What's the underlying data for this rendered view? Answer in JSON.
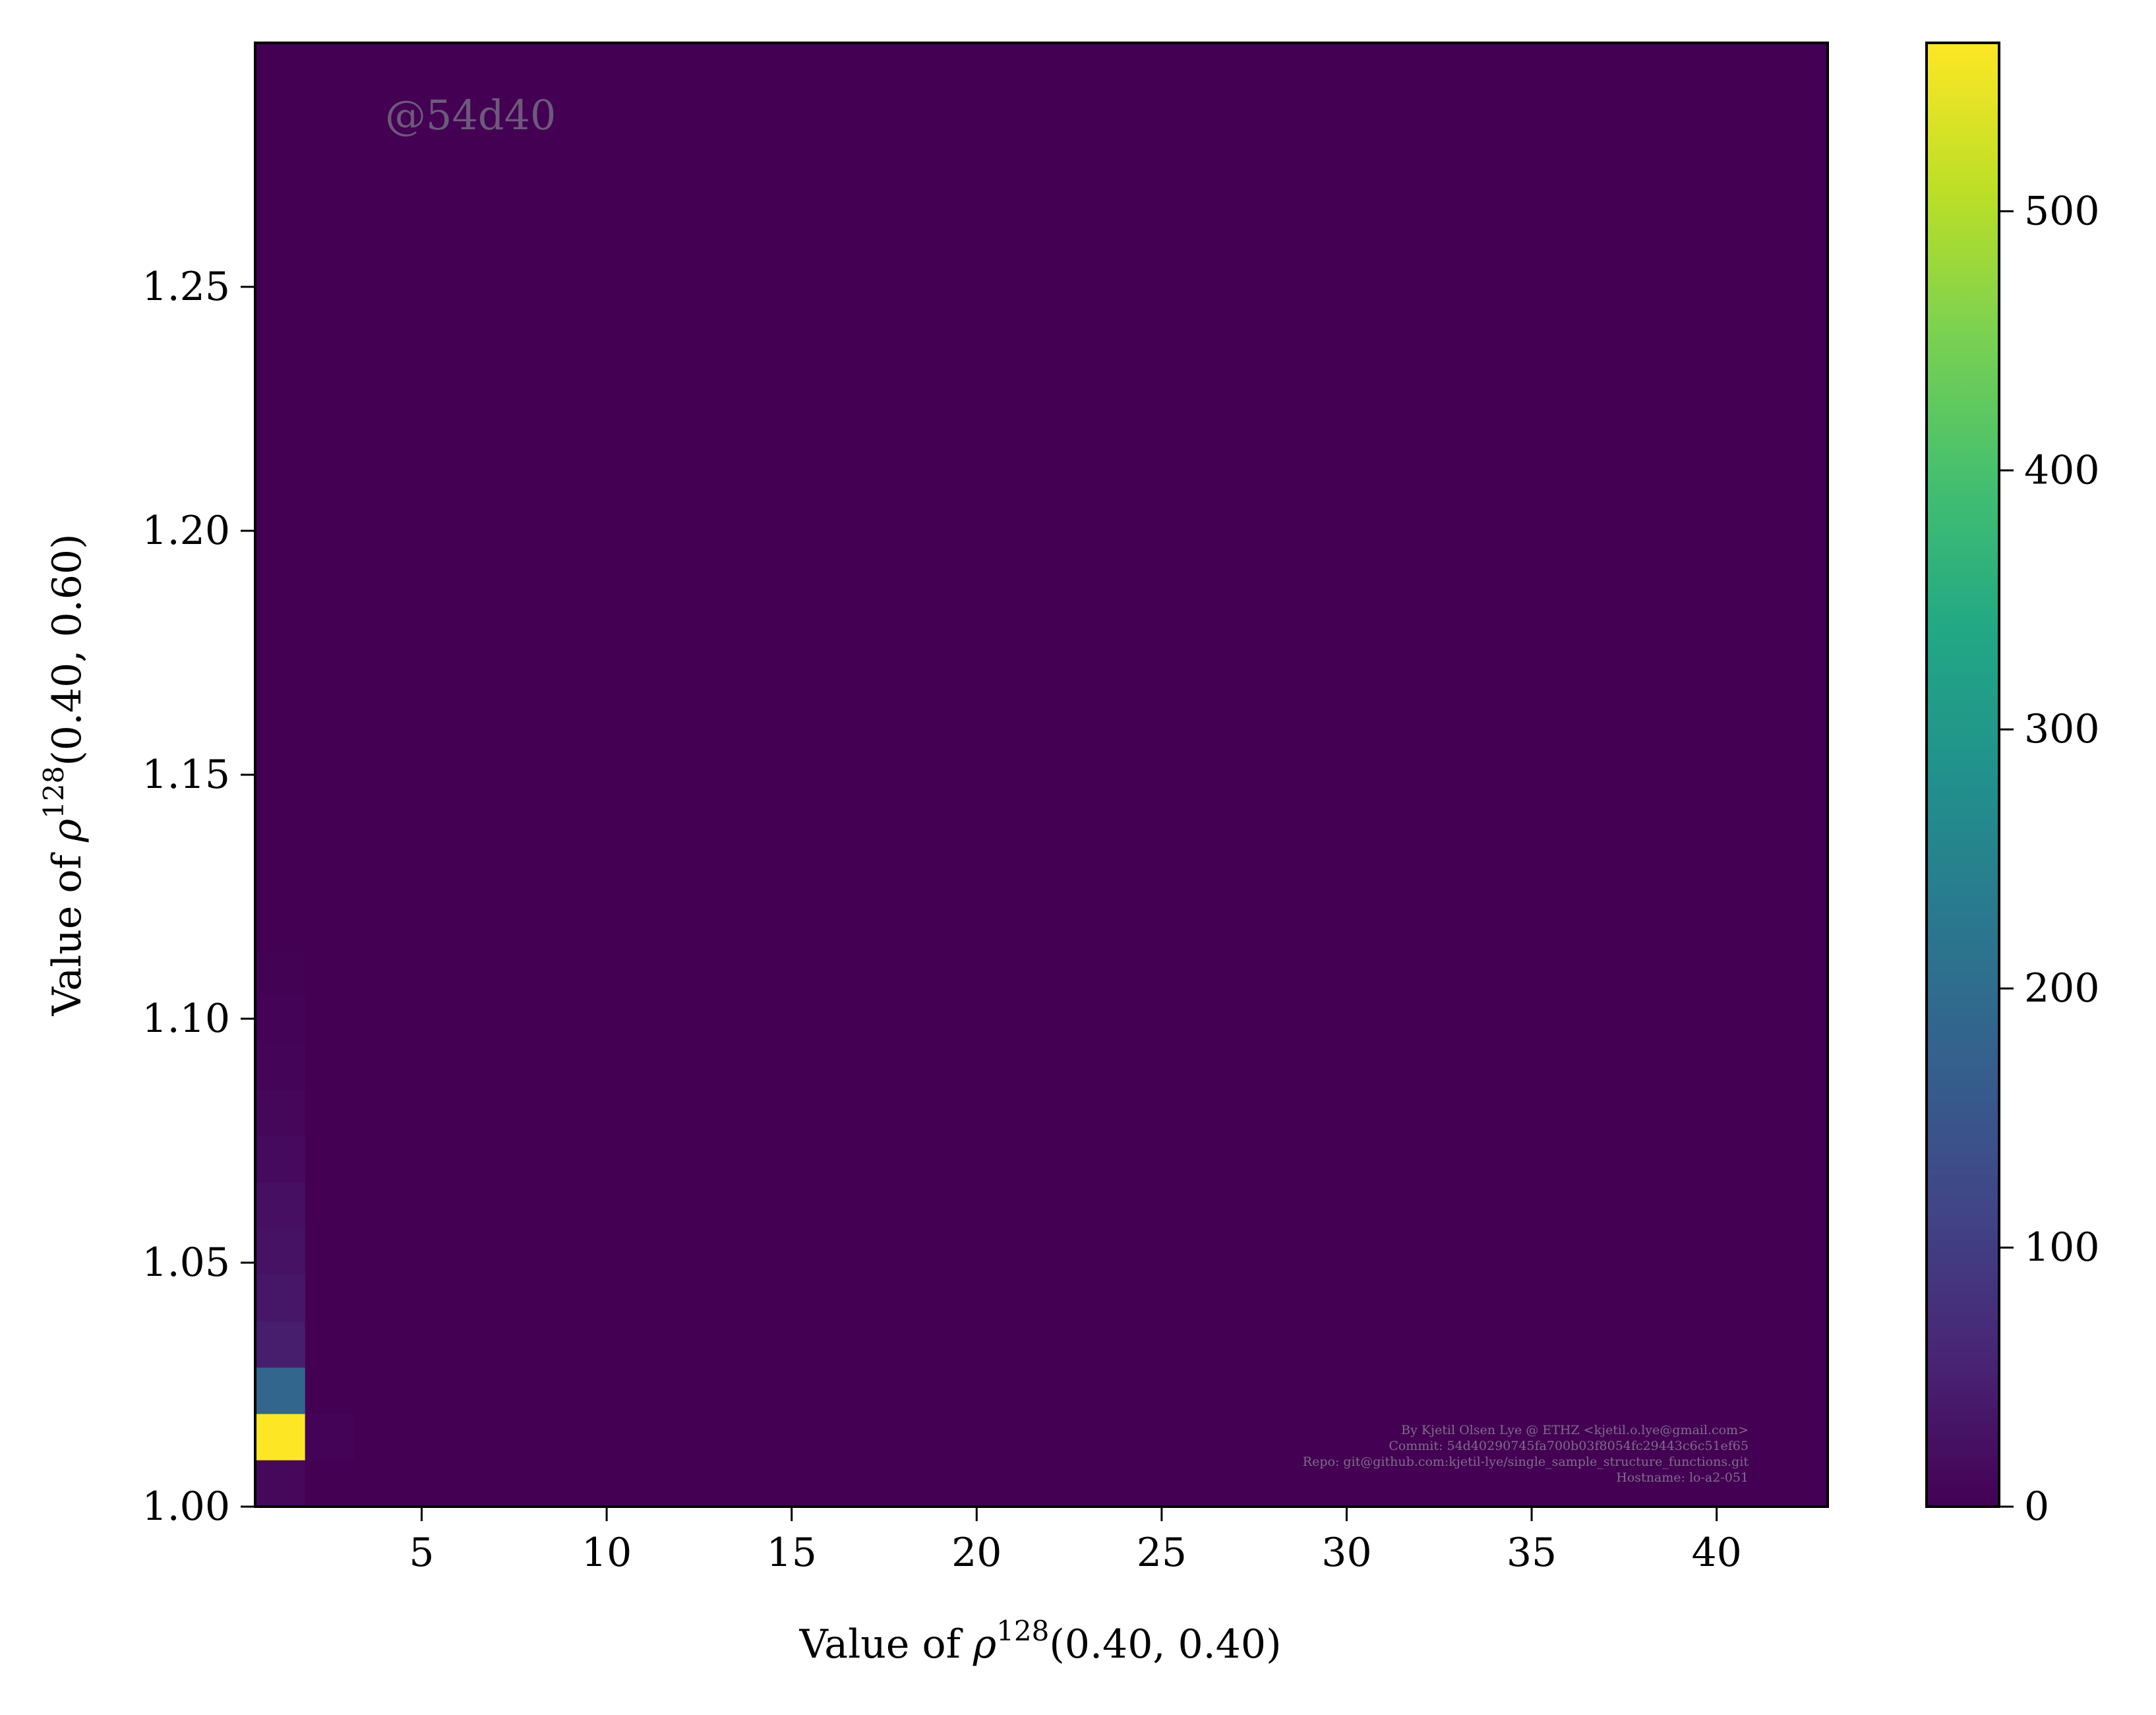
{
  "chart_data": {
    "type": "heatmap",
    "title": "",
    "xlabel": {
      "prefix": "Value of ",
      "symbol": "ρ",
      "superscript": "128",
      "args": "(0.40, 0.40)"
    },
    "ylabel": {
      "prefix": "Value of ",
      "symbol": "ρ",
      "superscript": "128",
      "args": "(0.40, 0.60)"
    },
    "xlim": [
      0.5,
      43
    ],
    "ylim": [
      1.0,
      1.3
    ],
    "x_ticks": [
      5,
      10,
      15,
      20,
      25,
      30,
      35,
      40
    ],
    "x_tick_labels": [
      "5",
      "10",
      "15",
      "20",
      "25",
      "30",
      "35",
      "40"
    ],
    "y_ticks": [
      1.0,
      1.05,
      1.1,
      1.15,
      1.2,
      1.25
    ],
    "y_tick_labels": [
      "1.00",
      "1.05",
      "1.10",
      "1.15",
      "1.20",
      "1.25"
    ],
    "colormap": "viridis",
    "background_color": "#440154",
    "colorbar": {
      "min": 0,
      "max": 565,
      "ticks": [
        0,
        100,
        200,
        300,
        400,
        500
      ],
      "tick_labels": [
        "0",
        "100",
        "200",
        "300",
        "400",
        "500"
      ]
    },
    "bin_width_x": 1.35,
    "bin_height_y": 0.0095,
    "cells": [
      {
        "x0": 0.5,
        "y0": 1.0,
        "count": 12
      },
      {
        "x0": 0.5,
        "y0": 1.0095,
        "count": 565
      },
      {
        "x0": 1.85,
        "y0": 1.0095,
        "count": 4
      },
      {
        "x0": 0.5,
        "y0": 1.019,
        "count": 185
      },
      {
        "x0": 0.5,
        "y0": 1.0285,
        "count": 45
      },
      {
        "x0": 0.5,
        "y0": 1.038,
        "count": 35
      },
      {
        "x0": 0.5,
        "y0": 1.0475,
        "count": 28
      },
      {
        "x0": 0.5,
        "y0": 1.057,
        "count": 22
      },
      {
        "x0": 0.5,
        "y0": 1.0665,
        "count": 15
      },
      {
        "x0": 0.5,
        "y0": 1.076,
        "count": 9
      },
      {
        "x0": 0.5,
        "y0": 1.0855,
        "count": 5
      },
      {
        "x0": 0.5,
        "y0": 1.095,
        "count": 4
      },
      {
        "x0": 0.5,
        "y0": 1.1045,
        "count": 2
      }
    ]
  },
  "watermark": "@54d40",
  "footer_lines": [
    "By Kjetil Olsen Lye @ ETHZ <kjetil.o.lye@gmail.com>",
    "Commit: 54d40290745fa700b03f8054fc29443c6c51ef65",
    "Repo: git@github.com:kjetil-lye/single_sample_structure_functions.git",
    "Hostname: lo-a2-051"
  ]
}
